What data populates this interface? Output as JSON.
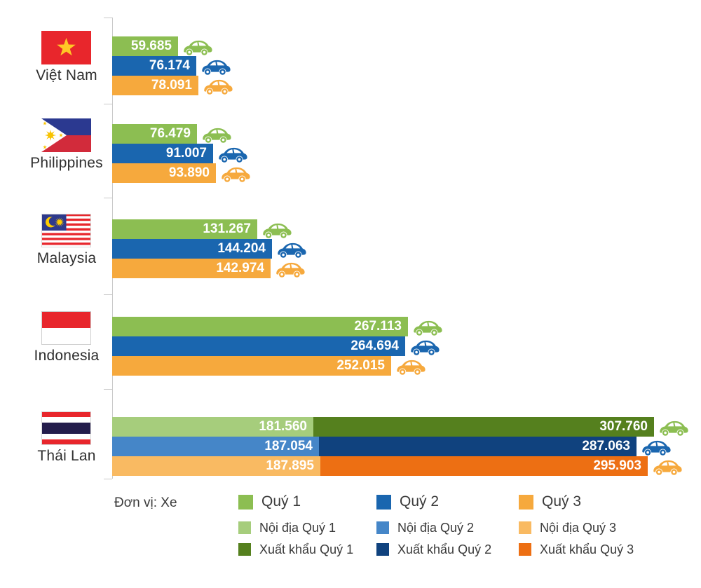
{
  "colors": {
    "quy1": "#8CBE52",
    "quy2": "#1A66AF",
    "quy3": "#F6A93D",
    "quy1_noidia": "#A6CD7C",
    "quy1_xuatkhau": "#55801E",
    "quy2_noidia": "#4586C8",
    "quy2_xuatkhau": "#10427E",
    "quy3_noidia": "#F9BA62",
    "quy3_xuatkhau": "#ED6F13",
    "axis": "#C9C9C9",
    "value_text": "#FFFFFF",
    "label_text": "#2F2F2F"
  },
  "legend": {
    "unit_label": "Đơn vị: Xe",
    "columns": [
      {
        "main": {
          "label": "Quý 1",
          "color": "quy1"
        },
        "subs": [
          {
            "label": "Nội địa Quý 1",
            "color": "quy1_noidia"
          },
          {
            "label": "Xuất khẩu Quý 1",
            "color": "quy1_xuatkhau"
          }
        ]
      },
      {
        "main": {
          "label": "Quý 2",
          "color": "quy2"
        },
        "subs": [
          {
            "label": "Nội địa Quý 2",
            "color": "quy2_noidia"
          },
          {
            "label": "Xuất khẩu Quý 2",
            "color": "quy2_xuatkhau"
          }
        ]
      },
      {
        "main": {
          "label": "Quý 3",
          "color": "quy3"
        },
        "subs": [
          {
            "label": "Nội địa Quý 3",
            "color": "quy3_noidia"
          },
          {
            "label": "Xuất khẩu Quý 3",
            "color": "quy3_xuatkhau"
          }
        ]
      }
    ]
  },
  "chart_data": {
    "type": "bar",
    "orientation": "horizontal",
    "unit": "Xe",
    "legend_position": "bottom",
    "grid": false,
    "series_names": [
      "Quý 1",
      "Quý 2",
      "Quý 3",
      "Nội địa Quý 1",
      "Nội địa Quý 2",
      "Nội địa Quý 3",
      "Xuất khẩu Quý 1",
      "Xuất khẩu Quý 2",
      "Xuất khẩu Quý 3"
    ],
    "categories": [
      "Việt Nam",
      "Philippines",
      "Malaysia",
      "Indonesia",
      "Thái Lan"
    ],
    "countries": [
      {
        "name": "Việt Nam",
        "flag": "vn",
        "bars": [
          {
            "quarter": "Quý 1",
            "segments": [
              {
                "series": "Quý 1",
                "value": 59685,
                "display": "59.685",
                "color": "quy1"
              }
            ]
          },
          {
            "quarter": "Quý 2",
            "segments": [
              {
                "series": "Quý 2",
                "value": 76174,
                "display": "76.174",
                "color": "quy2"
              }
            ]
          },
          {
            "quarter": "Quý 3",
            "segments": [
              {
                "series": "Quý 3",
                "value": 78091,
                "display": "78.091",
                "color": "quy3"
              }
            ]
          }
        ]
      },
      {
        "name": "Philippines",
        "flag": "ph",
        "bars": [
          {
            "quarter": "Quý 1",
            "segments": [
              {
                "series": "Quý 1",
                "value": 76479,
                "display": "76.479",
                "color": "quy1"
              }
            ]
          },
          {
            "quarter": "Quý 2",
            "segments": [
              {
                "series": "Quý 2",
                "value": 91007,
                "display": "91.007",
                "color": "quy2"
              }
            ]
          },
          {
            "quarter": "Quý 3",
            "segments": [
              {
                "series": "Quý 3",
                "value": 93890,
                "display": "93.890",
                "color": "quy3"
              }
            ]
          }
        ]
      },
      {
        "name": "Malaysia",
        "flag": "my",
        "bars": [
          {
            "quarter": "Quý 1",
            "segments": [
              {
                "series": "Quý 1",
                "value": 131267,
                "display": "131.267",
                "color": "quy1"
              }
            ]
          },
          {
            "quarter": "Quý 2",
            "segments": [
              {
                "series": "Quý 2",
                "value": 144204,
                "display": "144.204",
                "color": "quy2"
              }
            ]
          },
          {
            "quarter": "Quý 3",
            "segments": [
              {
                "series": "Quý 3",
                "value": 142974,
                "display": "142.974",
                "color": "quy3"
              }
            ]
          }
        ]
      },
      {
        "name": "Indonesia",
        "flag": "id",
        "bars": [
          {
            "quarter": "Quý 1",
            "segments": [
              {
                "series": "Quý 1",
                "value": 267113,
                "display": "267.113",
                "color": "quy1"
              }
            ]
          },
          {
            "quarter": "Quý 2",
            "segments": [
              {
                "series": "Quý 2",
                "value": 264694,
                "display": "264.694",
                "color": "quy2"
              }
            ]
          },
          {
            "quarter": "Quý 3",
            "segments": [
              {
                "series": "Quý 3",
                "value": 252015,
                "display": "252.015",
                "color": "quy3"
              }
            ]
          }
        ]
      },
      {
        "name": "Thái Lan",
        "flag": "th",
        "bars": [
          {
            "quarter": "Quý 1",
            "segments": [
              {
                "series": "Nội địa Quý 1",
                "value": 181560,
                "display": "181.560",
                "color": "quy1_noidia",
                "car": "quy1_noidia"
              },
              {
                "series": "Xuất khẩu Quý 1",
                "value": 307760,
                "display": "307.760",
                "color": "quy1_xuatkhau",
                "car": "quy1"
              }
            ]
          },
          {
            "quarter": "Quý 2",
            "segments": [
              {
                "series": "Nội địa Quý 2",
                "value": 187054,
                "display": "187.054",
                "color": "quy2_noidia",
                "car": "quy2_noidia"
              },
              {
                "series": "Xuất khẩu Quý 2",
                "value": 287063,
                "display": "287.063",
                "color": "quy2_xuatkhau",
                "car": "quy2"
              }
            ]
          },
          {
            "quarter": "Quý 3",
            "segments": [
              {
                "series": "Nội địa Quý 3",
                "value": 187895,
                "display": "187.895",
                "color": "quy3_noidia",
                "car": "quy3_noidia"
              },
              {
                "series": "Xuất khẩu Quý 3",
                "value": 295903,
                "display": "295.903",
                "color": "quy3_xuatkhau",
                "car": "quy3"
              }
            ]
          }
        ]
      }
    ]
  }
}
